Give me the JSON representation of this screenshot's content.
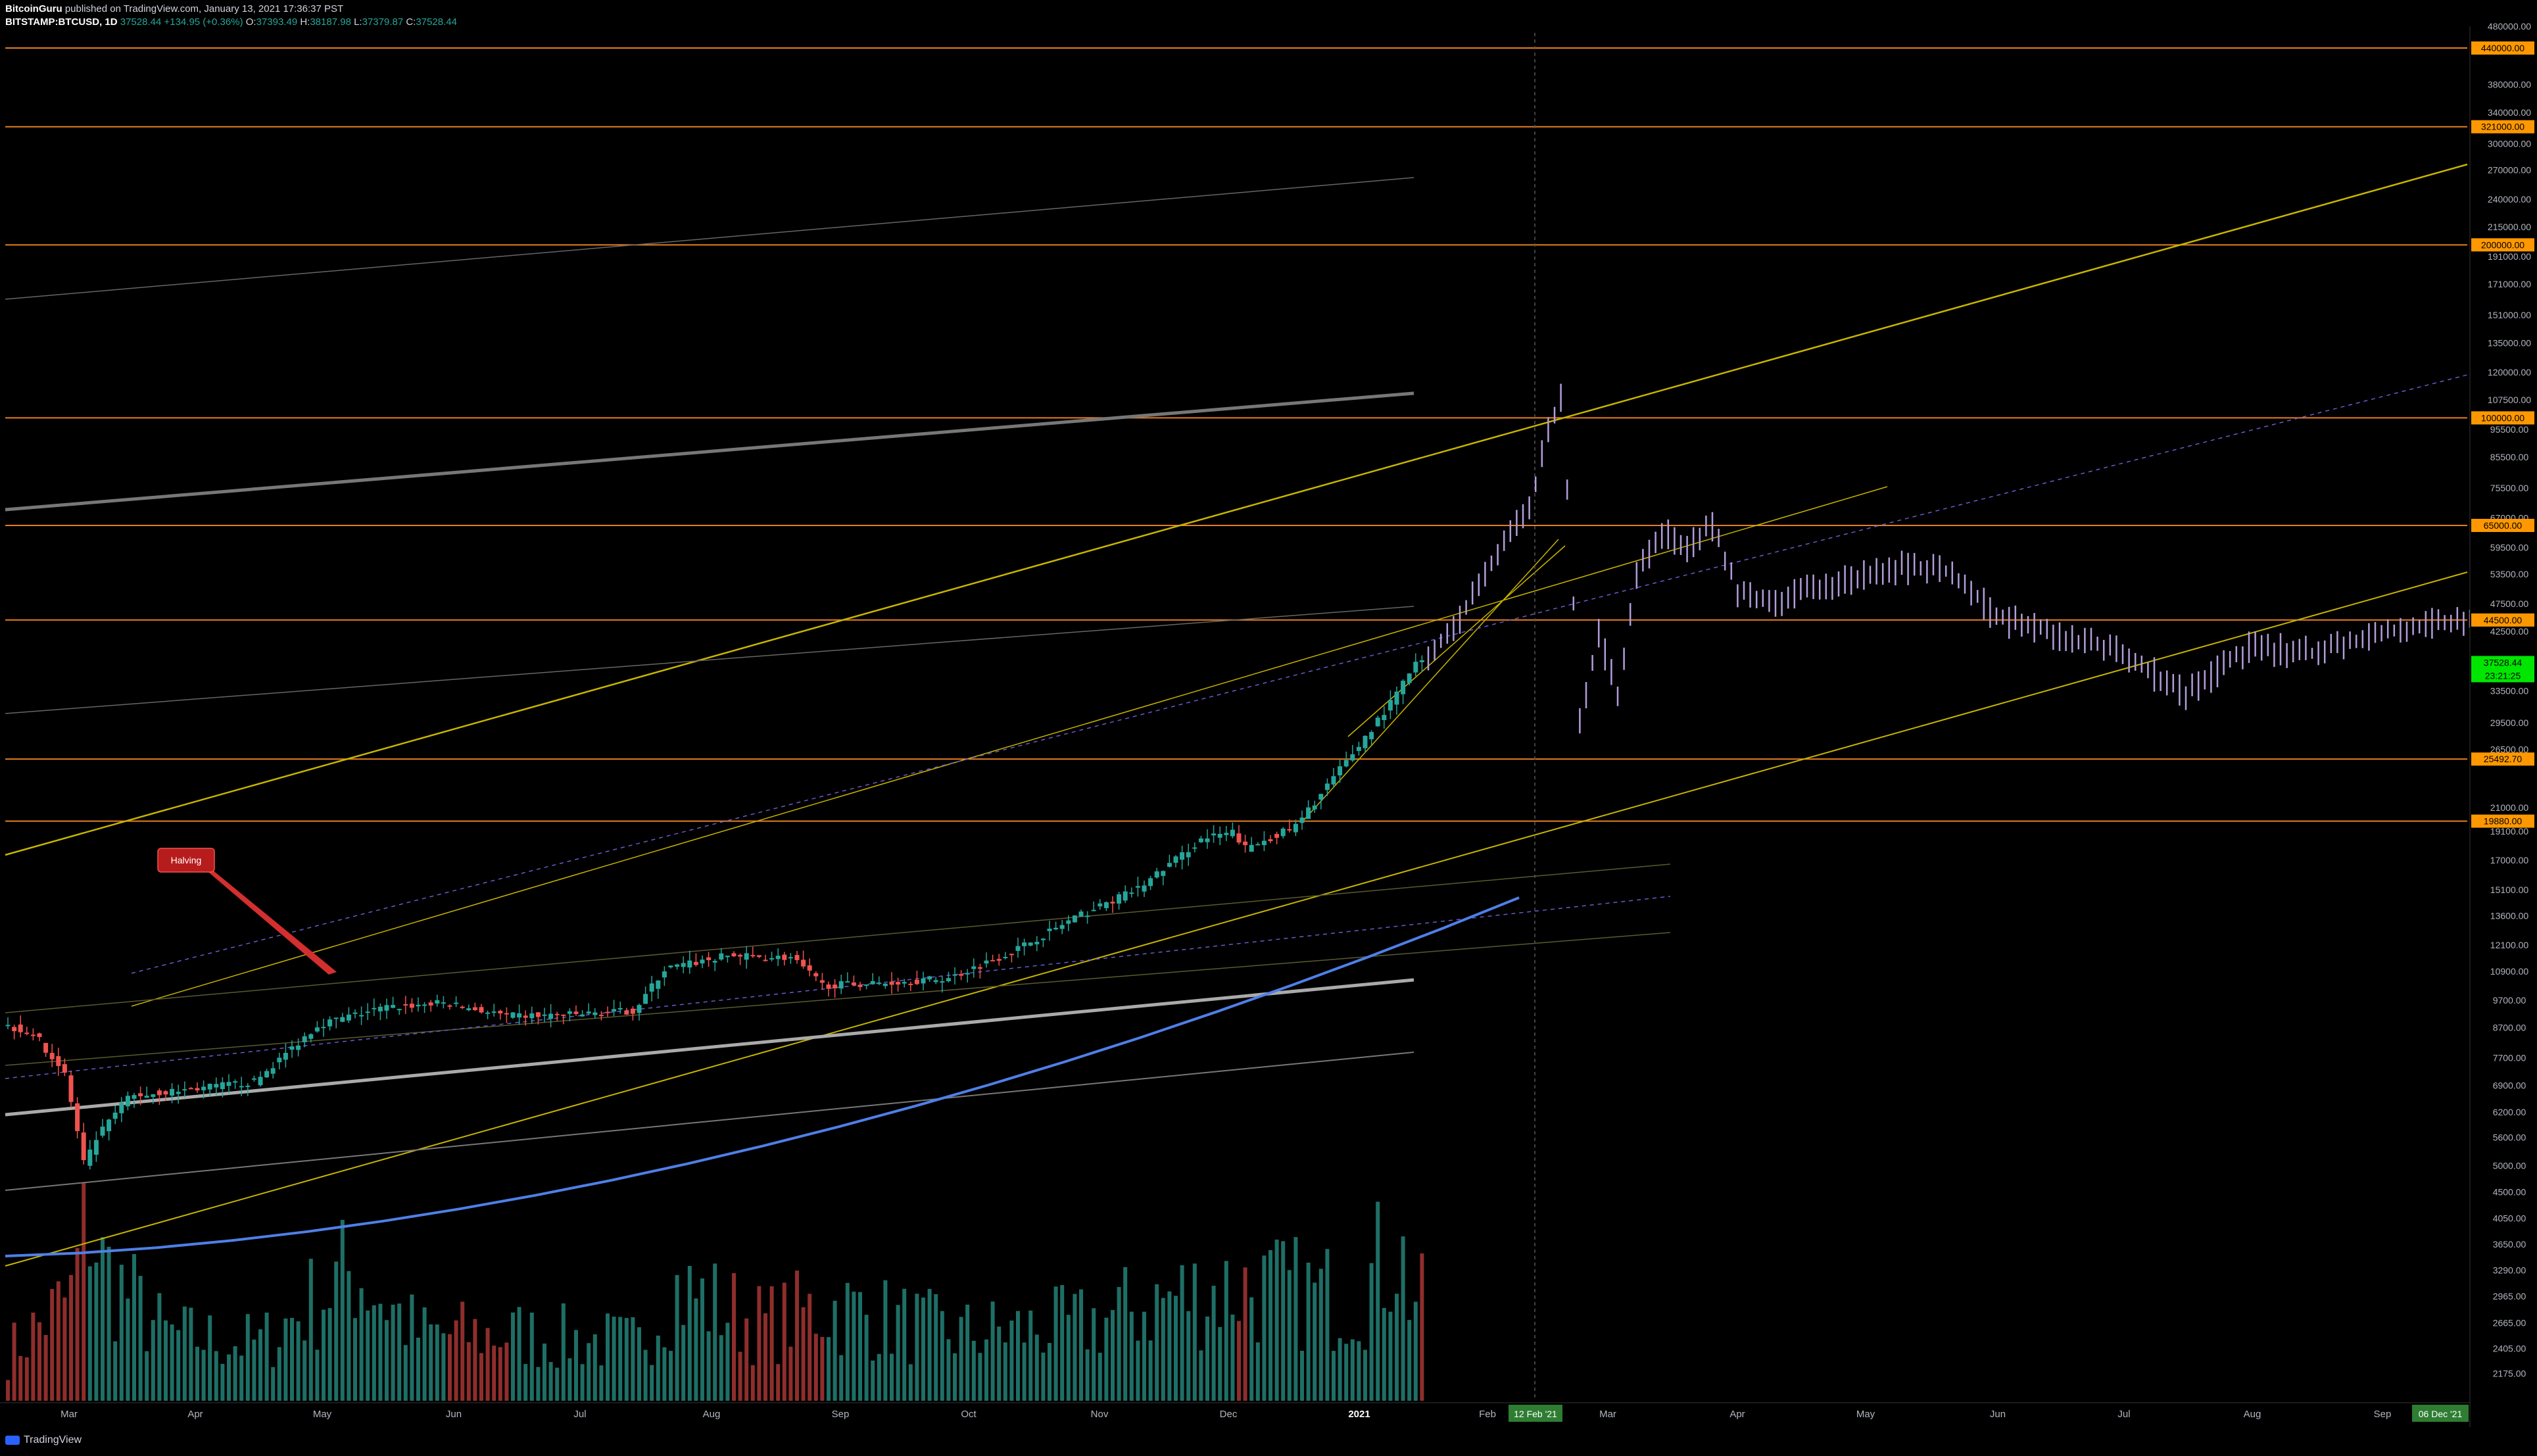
{
  "header": {
    "author": "BitcoinGuru",
    "published": "published on TradingView.com, January 13, 2021 17:36:37 PST",
    "symbol": "BITSTAMP:BTCUSD, 1D",
    "last": "37528.44",
    "change": "+134.95 (+0.36%)",
    "o_label": "O:",
    "o": "37393.49",
    "h_label": "H:",
    "h": "38187.98",
    "l_label": "L:",
    "l": "37379.87",
    "c_label": "C:",
    "c": "37528.44"
  },
  "footer": {
    "brand": "TradingView"
  },
  "colors": {
    "background": "#000000",
    "up": "#26a69a",
    "down": "#ef5350",
    "projection": "#b39ddb",
    "hline": "#e67e22",
    "trend": "#c8b400",
    "curve": "#4f7fe8",
    "grey": "#8a8a8a",
    "price_label_bg": "#ff9800",
    "current_price_bg": "#00e600"
  },
  "chart_data": {
    "type": "candlestick",
    "scale": "log",
    "currency": "USD",
    "ylim": [
      1950,
      480000
    ],
    "x_ticks": [
      "Mar",
      "Apr",
      "May",
      "Jun",
      "Jul",
      "Aug",
      "Sep",
      "Oct",
      "Nov",
      "Dec",
      "2021",
      "Feb",
      "Mar",
      "Apr",
      "May",
      "Jun",
      "Jul",
      "Aug",
      "Sep"
    ],
    "y_ticks": [
      "480000.00",
      "440000.00",
      "380000.00",
      "340000.00",
      "300000.00",
      "270000.00",
      "240000.00",
      "215000.00",
      "191000.00",
      "171000.00",
      "151000.00",
      "135000.00",
      "120000.00",
      "107500.00",
      "95500.00",
      "85500.00",
      "75500.00",
      "67000.00",
      "59500.00",
      "53500.00",
      "47500.00",
      "42500.00",
      "33500.00",
      "29500.00",
      "26500.00",
      "21000.00",
      "19100.00",
      "17000.00",
      "15100.00",
      "13600.00",
      "12100.00",
      "10900.00",
      "9700.00",
      "8700.00",
      "7700.00",
      "6900.00",
      "6200.00",
      "5600.00",
      "5000.00",
      "4500.00",
      "4050.00",
      "3650.00",
      "3290.00",
      "2965.00",
      "2665.00",
      "2405.00",
      "2175.00"
    ],
    "horizontal_levels": [
      {
        "value": 440000,
        "label": "440000.00"
      },
      {
        "value": 321000,
        "label": "321000.00"
      },
      {
        "value": 200000,
        "label": "200000.00"
      },
      {
        "value": 100000,
        "label": "100000.00"
      },
      {
        "value": 65000,
        "label": "65000.00"
      },
      {
        "value": 44500,
        "label": "44500.00"
      },
      {
        "value": 25492.7,
        "label": "25492.70"
      },
      {
        "value": 19880,
        "label": "19880.00"
      }
    ],
    "current_price": {
      "value": 37528.44,
      "label": "37528.44",
      "countdown": "23:21:25"
    },
    "axis_unit": "USD",
    "vertical_marker": {
      "label": "12 Feb '21"
    },
    "end_marker": {
      "label": "06 Dec '21"
    },
    "annotation": {
      "text": "Halving"
    },
    "anchors": [
      [
        0,
        8800
      ],
      [
        5,
        8500
      ],
      [
        10,
        7200
      ],
      [
        13,
        5000
      ],
      [
        15,
        5600
      ],
      [
        20,
        6600
      ],
      [
        30,
        6800
      ],
      [
        40,
        7000
      ],
      [
        50,
        8800
      ],
      [
        60,
        9400
      ],
      [
        70,
        9600
      ],
      [
        80,
        9100
      ],
      [
        90,
        9150
      ],
      [
        100,
        9300
      ],
      [
        105,
        11000
      ],
      [
        115,
        11600
      ],
      [
        125,
        11500
      ],
      [
        130,
        10300
      ],
      [
        140,
        10400
      ],
      [
        150,
        10600
      ],
      [
        160,
        11800
      ],
      [
        170,
        13500
      ],
      [
        180,
        15200
      ],
      [
        190,
        18500
      ],
      [
        195,
        19000
      ],
      [
        197,
        17800
      ],
      [
        205,
        19500
      ],
      [
        210,
        23000
      ],
      [
        215,
        27000
      ],
      [
        220,
        32000
      ],
      [
        224,
        37528
      ]
    ],
    "projection_anchors": [
      [
        225,
        38000
      ],
      [
        230,
        45000
      ],
      [
        236,
        58000
      ],
      [
        241,
        70000
      ],
      [
        244,
        95000
      ],
      [
        246,
        110000
      ],
      [
        247,
        75000
      ],
      [
        249,
        30000
      ],
      [
        252,
        42000
      ],
      [
        255,
        33000
      ],
      [
        258,
        53000
      ],
      [
        262,
        63000
      ],
      [
        266,
        60000
      ],
      [
        270,
        65000
      ],
      [
        274,
        50000
      ],
      [
        280,
        48000
      ],
      [
        290,
        52000
      ],
      [
        300,
        55000
      ],
      [
        308,
        54000
      ],
      [
        315,
        45000
      ],
      [
        325,
        42000
      ],
      [
        335,
        39000
      ],
      [
        345,
        33000
      ],
      [
        355,
        40000
      ],
      [
        365,
        39000
      ],
      [
        375,
        42000
      ],
      [
        385,
        44000
      ],
      [
        395,
        44500
      ],
      [
        405,
        55000
      ],
      [
        415,
        53500
      ],
      [
        425,
        52500
      ],
      [
        432,
        52000
      ]
    ],
    "volume_anchors": [
      [
        0,
        0.25
      ],
      [
        10,
        0.55
      ],
      [
        13,
        1.0
      ],
      [
        15,
        0.7
      ],
      [
        25,
        0.35
      ],
      [
        40,
        0.3
      ],
      [
        55,
        0.7
      ],
      [
        65,
        0.35
      ],
      [
        80,
        0.35
      ],
      [
        100,
        0.3
      ],
      [
        105,
        0.6
      ],
      [
        120,
        0.4
      ],
      [
        130,
        0.5
      ],
      [
        150,
        0.35
      ],
      [
        170,
        0.4
      ],
      [
        185,
        0.55
      ],
      [
        195,
        0.6
      ],
      [
        210,
        0.55
      ],
      [
        215,
        0.6
      ],
      [
        220,
        0.85
      ],
      [
        222,
        0.6
      ],
      [
        224,
        0.5
      ]
    ]
  }
}
